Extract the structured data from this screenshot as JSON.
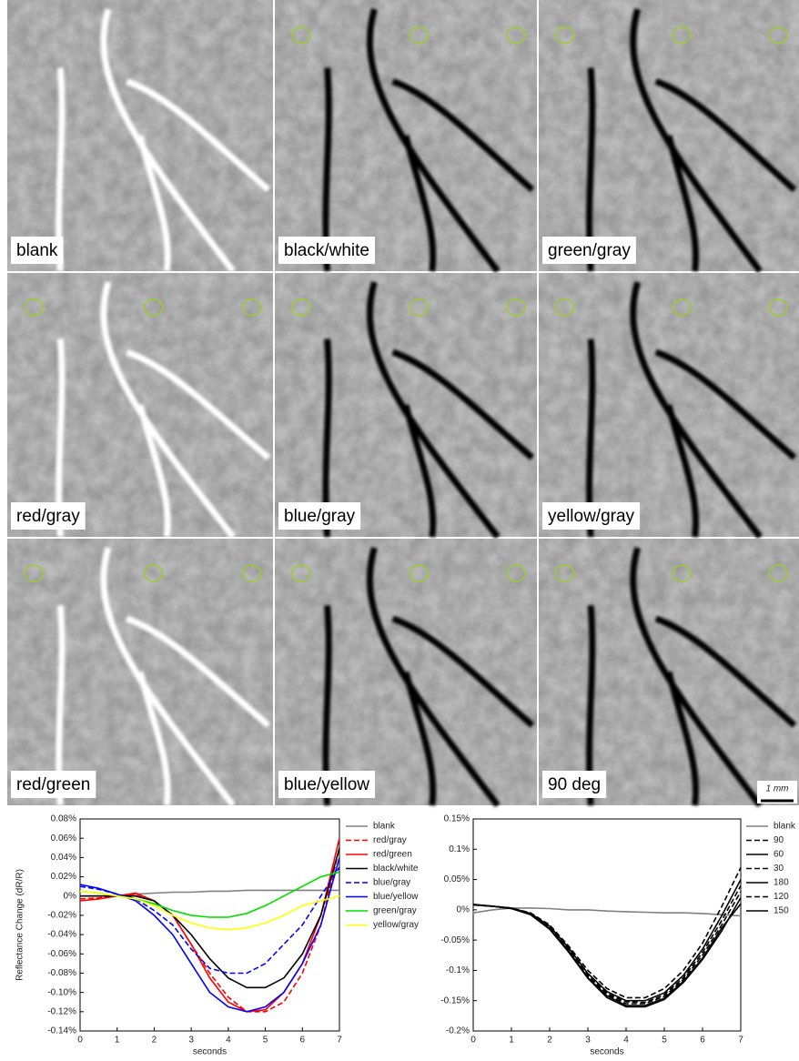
{
  "image_panels": {
    "labels": [
      "blank",
      "black/white",
      "green/gray",
      "red/gray",
      "blue/gray",
      "yellow/gray",
      "red/green",
      "blue/yellow",
      "90 deg"
    ],
    "scale_bar": "1 mm"
  },
  "chart_data": [
    {
      "type": "line",
      "ylabel": "Reflectance Change (dR/R)",
      "xlabel": "seconds",
      "x": [
        0,
        0.5,
        1,
        1.5,
        2,
        2.5,
        3,
        3.5,
        4,
        4.5,
        5,
        5.5,
        6,
        6.5,
        7
      ],
      "xlim": [
        0,
        7
      ],
      "xticks": [
        0,
        1,
        2,
        3,
        4,
        5,
        6,
        7
      ],
      "ylim": [
        -0.14,
        0.08
      ],
      "yticks": [
        {
          "value": -0.14,
          "label": "-0.14%"
        },
        {
          "value": -0.12,
          "label": "-0.12%"
        },
        {
          "value": -0.1,
          "label": "-0.10%"
        },
        {
          "value": -0.08,
          "label": "-0.08%"
        },
        {
          "value": -0.06,
          "label": "-0.06%"
        },
        {
          "value": -0.04,
          "label": "-0.04%"
        },
        {
          "value": -0.02,
          "label": "-0.02%"
        },
        {
          "value": 0,
          "label": "0%"
        },
        {
          "value": 0.02,
          "label": "0.02%"
        },
        {
          "value": 0.04,
          "label": "0.04%"
        },
        {
          "value": 0.06,
          "label": "0.06%"
        },
        {
          "value": 0.08,
          "label": "0.08%"
        }
      ],
      "series": [
        {
          "name": "blank",
          "color": "#808080",
          "dashed": false,
          "values": [
            0,
            0,
            0,
            0.002,
            0.003,
            0.004,
            0.004,
            0.005,
            0.005,
            0.006,
            0.006,
            0.006,
            0.006,
            0.006,
            0.006
          ]
        },
        {
          "name": "red/gray",
          "color": "#ff0000",
          "dashed": true,
          "values": [
            -0.003,
            -0.002,
            0,
            0.002,
            -0.005,
            -0.02,
            -0.05,
            -0.08,
            -0.105,
            -0.12,
            -0.12,
            -0.11,
            -0.08,
            -0.03,
            0.05
          ]
        },
        {
          "name": "red/green",
          "color": "#ff0000",
          "dashed": false,
          "values": [
            -0.005,
            -0.003,
            0,
            0.003,
            -0.005,
            -0.02,
            -0.05,
            -0.085,
            -0.11,
            -0.12,
            -0.118,
            -0.1,
            -0.07,
            -0.02,
            0.06
          ]
        },
        {
          "name": "black/white",
          "color": "#000000",
          "dashed": false,
          "values": [
            0,
            0,
            0,
            0,
            -0.005,
            -0.02,
            -0.04,
            -0.065,
            -0.085,
            -0.095,
            -0.095,
            -0.085,
            -0.06,
            -0.02,
            0.05
          ]
        },
        {
          "name": "blue/gray",
          "color": "#0000ff",
          "dashed": true,
          "values": [
            0.01,
            0.007,
            0.002,
            -0.003,
            -0.015,
            -0.03,
            -0.055,
            -0.075,
            -0.08,
            -0.08,
            -0.07,
            -0.05,
            -0.03,
            0,
            0.03
          ]
        },
        {
          "name": "blue/yellow",
          "color": "#0000ff",
          "dashed": false,
          "values": [
            0.012,
            0.008,
            0.002,
            -0.005,
            -0.02,
            -0.04,
            -0.07,
            -0.1,
            -0.115,
            -0.12,
            -0.115,
            -0.1,
            -0.07,
            -0.03,
            0.04
          ]
        },
        {
          "name": "green/gray",
          "color": "#00dd00",
          "dashed": false,
          "values": [
            0.005,
            0.003,
            0,
            -0.003,
            -0.008,
            -0.015,
            -0.02,
            -0.022,
            -0.022,
            -0.018,
            -0.01,
            0,
            0.01,
            0.02,
            0.025
          ]
        },
        {
          "name": "yellow/gray",
          "color": "#ffff00",
          "dashed": false,
          "values": [
            0.005,
            0.003,
            0,
            -0.003,
            -0.01,
            -0.02,
            -0.028,
            -0.033,
            -0.035,
            -0.033,
            -0.028,
            -0.02,
            -0.01,
            -0.005,
            0
          ]
        }
      ]
    },
    {
      "type": "line",
      "xlabel": "seconds",
      "x": [
        0,
        0.5,
        1,
        1.5,
        2,
        2.5,
        3,
        3.5,
        4,
        4.5,
        5,
        5.5,
        6,
        6.5,
        7
      ],
      "xlim": [
        0,
        7
      ],
      "xticks": [
        0,
        1,
        2,
        3,
        4,
        5,
        6,
        7
      ],
      "ylim": [
        -0.2,
        0.15
      ],
      "yticks": [
        {
          "value": -0.2,
          "label": "-0.2%"
        },
        {
          "value": -0.15,
          "label": "-0.15%"
        },
        {
          "value": -0.1,
          "label": "-0.1%"
        },
        {
          "value": -0.05,
          "label": "-0.05%"
        },
        {
          "value": 0,
          "label": "0%"
        },
        {
          "value": 0.05,
          "label": "0.05%"
        },
        {
          "value": 0.1,
          "label": "0.1%"
        },
        {
          "value": 0.15,
          "label": "0.15%"
        }
      ],
      "series": [
        {
          "name": "blank",
          "color": "#808080",
          "dashed": false,
          "values": [
            -0.005,
            0,
            0.003,
            0.003,
            0.002,
            0,
            0,
            -0.002,
            -0.003,
            -0.004,
            -0.005,
            -0.005,
            -0.006,
            -0.008,
            -0.01
          ]
        },
        {
          "name": "90",
          "color": "#000000",
          "dashed": true,
          "values": [
            0.008,
            0.006,
            0.003,
            -0.005,
            -0.025,
            -0.06,
            -0.1,
            -0.13,
            -0.145,
            -0.145,
            -0.13,
            -0.1,
            -0.055,
            0.005,
            0.07
          ]
        },
        {
          "name": "60",
          "color": "#000000",
          "dashed": false,
          "values": [
            0.008,
            0.006,
            0.003,
            -0.006,
            -0.027,
            -0.063,
            -0.105,
            -0.135,
            -0.15,
            -0.15,
            -0.137,
            -0.108,
            -0.065,
            -0.01,
            0.05
          ]
        },
        {
          "name": "30",
          "color": "#000000",
          "dashed": true,
          "values": [
            0.009,
            0.006,
            0.002,
            -0.007,
            -0.03,
            -0.067,
            -0.11,
            -0.14,
            -0.155,
            -0.155,
            -0.143,
            -0.115,
            -0.075,
            -0.025,
            0.03
          ]
        },
        {
          "name": "180",
          "color": "#000000",
          "dashed": false,
          "values": [
            0.009,
            0.006,
            0.002,
            -0.008,
            -0.032,
            -0.07,
            -0.113,
            -0.145,
            -0.16,
            -0.16,
            -0.148,
            -0.12,
            -0.082,
            -0.035,
            0.02
          ]
        },
        {
          "name": "120",
          "color": "#000000",
          "dashed": true,
          "values": [
            0.008,
            0.006,
            0.003,
            -0.006,
            -0.028,
            -0.065,
            -0.107,
            -0.138,
            -0.152,
            -0.153,
            -0.14,
            -0.112,
            -0.07,
            -0.018,
            0.04
          ]
        },
        {
          "name": "150",
          "color": "#000000",
          "dashed": false,
          "values": [
            0.009,
            0.006,
            0.002,
            -0.007,
            -0.031,
            -0.068,
            -0.112,
            -0.142,
            -0.158,
            -0.158,
            -0.146,
            -0.118,
            -0.08,
            -0.03,
            0.01
          ]
        }
      ]
    }
  ]
}
